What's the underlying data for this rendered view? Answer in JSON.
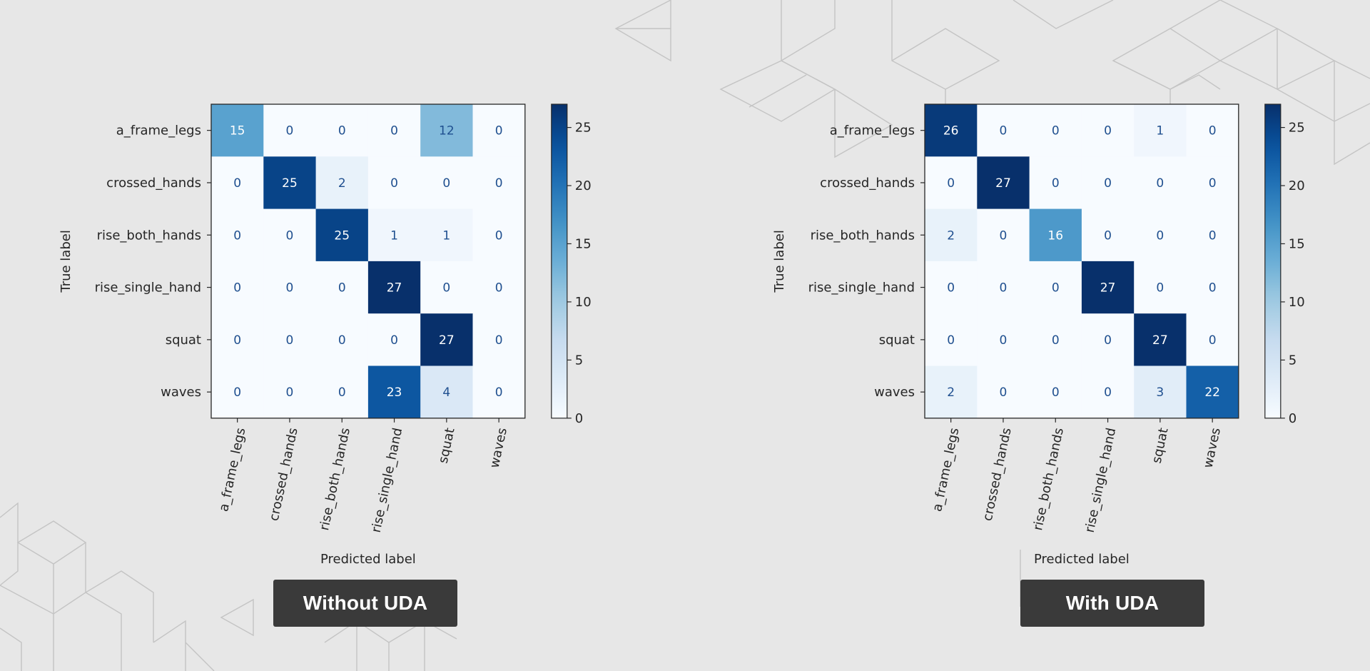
{
  "colors": {
    "low": "#f7fbff",
    "high": "#08306b",
    "text_dark": "#1f4f8f",
    "text_light": "#ffffff",
    "axis": "#262626",
    "caption_bg": "#3a3a3a",
    "pattern_stroke": "#c4c4c4"
  },
  "chart_data": [
    {
      "type": "heatmap",
      "title": "",
      "xlabel": "Predicted label",
      "ylabel": "True label",
      "caption": "Without UDA",
      "x_categories": [
        "a_frame_legs",
        "crossed_hands",
        "rise_both_hands",
        "rise_single_hand",
        "squat",
        "waves"
      ],
      "y_categories": [
        "a_frame_legs",
        "crossed_hands",
        "rise_both_hands",
        "rise_single_hand",
        "squat",
        "waves"
      ],
      "matrix": [
        [
          15,
          0,
          0,
          0,
          12,
          0
        ],
        [
          0,
          25,
          2,
          0,
          0,
          0
        ],
        [
          0,
          0,
          25,
          1,
          1,
          0
        ],
        [
          0,
          0,
          0,
          27,
          0,
          0
        ],
        [
          0,
          0,
          0,
          0,
          27,
          0
        ],
        [
          0,
          0,
          0,
          23,
          4,
          0
        ]
      ],
      "colorbar": {
        "range": [
          0,
          27
        ],
        "ticks": [
          0,
          5,
          10,
          15,
          20,
          25
        ],
        "colormap": "Blues"
      }
    },
    {
      "type": "heatmap",
      "title": "",
      "xlabel": "Predicted label",
      "ylabel": "True label",
      "caption": "With UDA",
      "x_categories": [
        "a_frame_legs",
        "crossed_hands",
        "rise_both_hands",
        "rise_single_hand",
        "squat",
        "waves"
      ],
      "y_categories": [
        "a_frame_legs",
        "crossed_hands",
        "rise_both_hands",
        "rise_single_hand",
        "squat",
        "waves"
      ],
      "matrix": [
        [
          26,
          0,
          0,
          0,
          1,
          0
        ],
        [
          0,
          27,
          0,
          0,
          0,
          0
        ],
        [
          2,
          0,
          16,
          0,
          0,
          0
        ],
        [
          0,
          0,
          0,
          27,
          0,
          0
        ],
        [
          0,
          0,
          0,
          0,
          27,
          0
        ],
        [
          2,
          0,
          0,
          0,
          3,
          22
        ]
      ],
      "colorbar": {
        "range": [
          0,
          27
        ],
        "ticks": [
          0,
          5,
          10,
          15,
          20,
          25
        ],
        "colormap": "Blues"
      }
    }
  ]
}
